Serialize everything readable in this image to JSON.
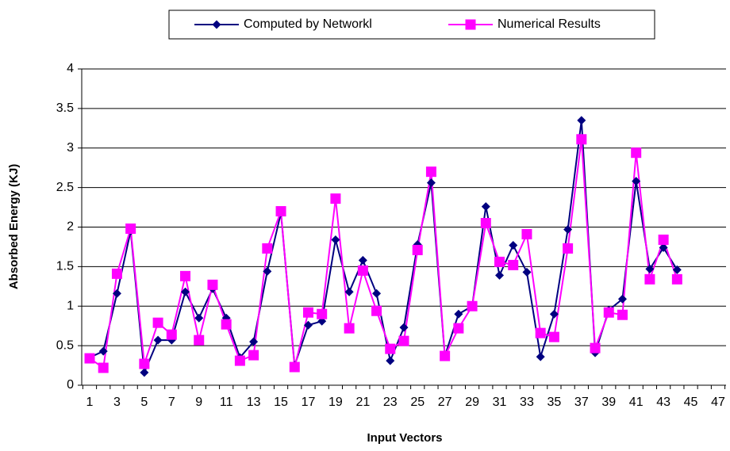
{
  "chart_data": {
    "type": "line",
    "x_label": "Input Vectors",
    "y_label": "Absorbed Energy (KJ)",
    "categories": [
      "1",
      null,
      "3",
      null,
      "5",
      null,
      "7",
      null,
      "9",
      null,
      "11",
      null,
      "13",
      null,
      "15",
      null,
      "17",
      null,
      "19",
      null,
      "21",
      null,
      "23",
      null,
      "25",
      null,
      "27",
      null,
      "29",
      null,
      "31",
      null,
      "33",
      null,
      "35",
      null,
      "37",
      null,
      "39",
      null,
      "41",
      null,
      "43",
      null,
      "45",
      null,
      "47"
    ],
    "series": [
      {
        "name": "Computed by Networkl",
        "color": "#000080",
        "marker": "diamond",
        "values": [
          0.35,
          0.43,
          1.16,
          1.95,
          0.16,
          0.57,
          0.57,
          1.18,
          0.85,
          1.22,
          0.85,
          0.35,
          0.55,
          1.44,
          2.18,
          0.25,
          0.76,
          0.81,
          1.84,
          1.18,
          1.58,
          1.16,
          0.31,
          0.73,
          1.78,
          2.56,
          0.37,
          0.9,
          1.0,
          2.26,
          1.39,
          1.77,
          1.43,
          0.36,
          0.9,
          1.97,
          3.35,
          0.41,
          0.95,
          1.09,
          2.58,
          1.47,
          1.74,
          1.46,
          null,
          null,
          null
        ]
      },
      {
        "name": "Numerical Results",
        "color": "#ff00ff",
        "marker": "square",
        "values": [
          0.34,
          0.22,
          1.41,
          1.98,
          0.27,
          0.79,
          0.64,
          1.38,
          0.57,
          1.27,
          0.77,
          0.31,
          0.38,
          1.73,
          2.2,
          0.23,
          0.92,
          0.9,
          2.36,
          0.72,
          1.45,
          0.94,
          0.46,
          0.56,
          1.71,
          2.7,
          0.37,
          0.72,
          1.0,
          2.05,
          1.56,
          1.52,
          1.91,
          0.66,
          0.61,
          1.73,
          3.11,
          0.47,
          0.92,
          0.89,
          2.94,
          1.34,
          1.84,
          1.34,
          null,
          null,
          null
        ]
      }
    ],
    "ylim": [
      0,
      4
    ],
    "yticks": [
      0,
      0.5,
      1,
      1.5,
      2,
      2.5,
      3,
      3.5,
      4
    ],
    "grid": true,
    "legend": "top"
  }
}
